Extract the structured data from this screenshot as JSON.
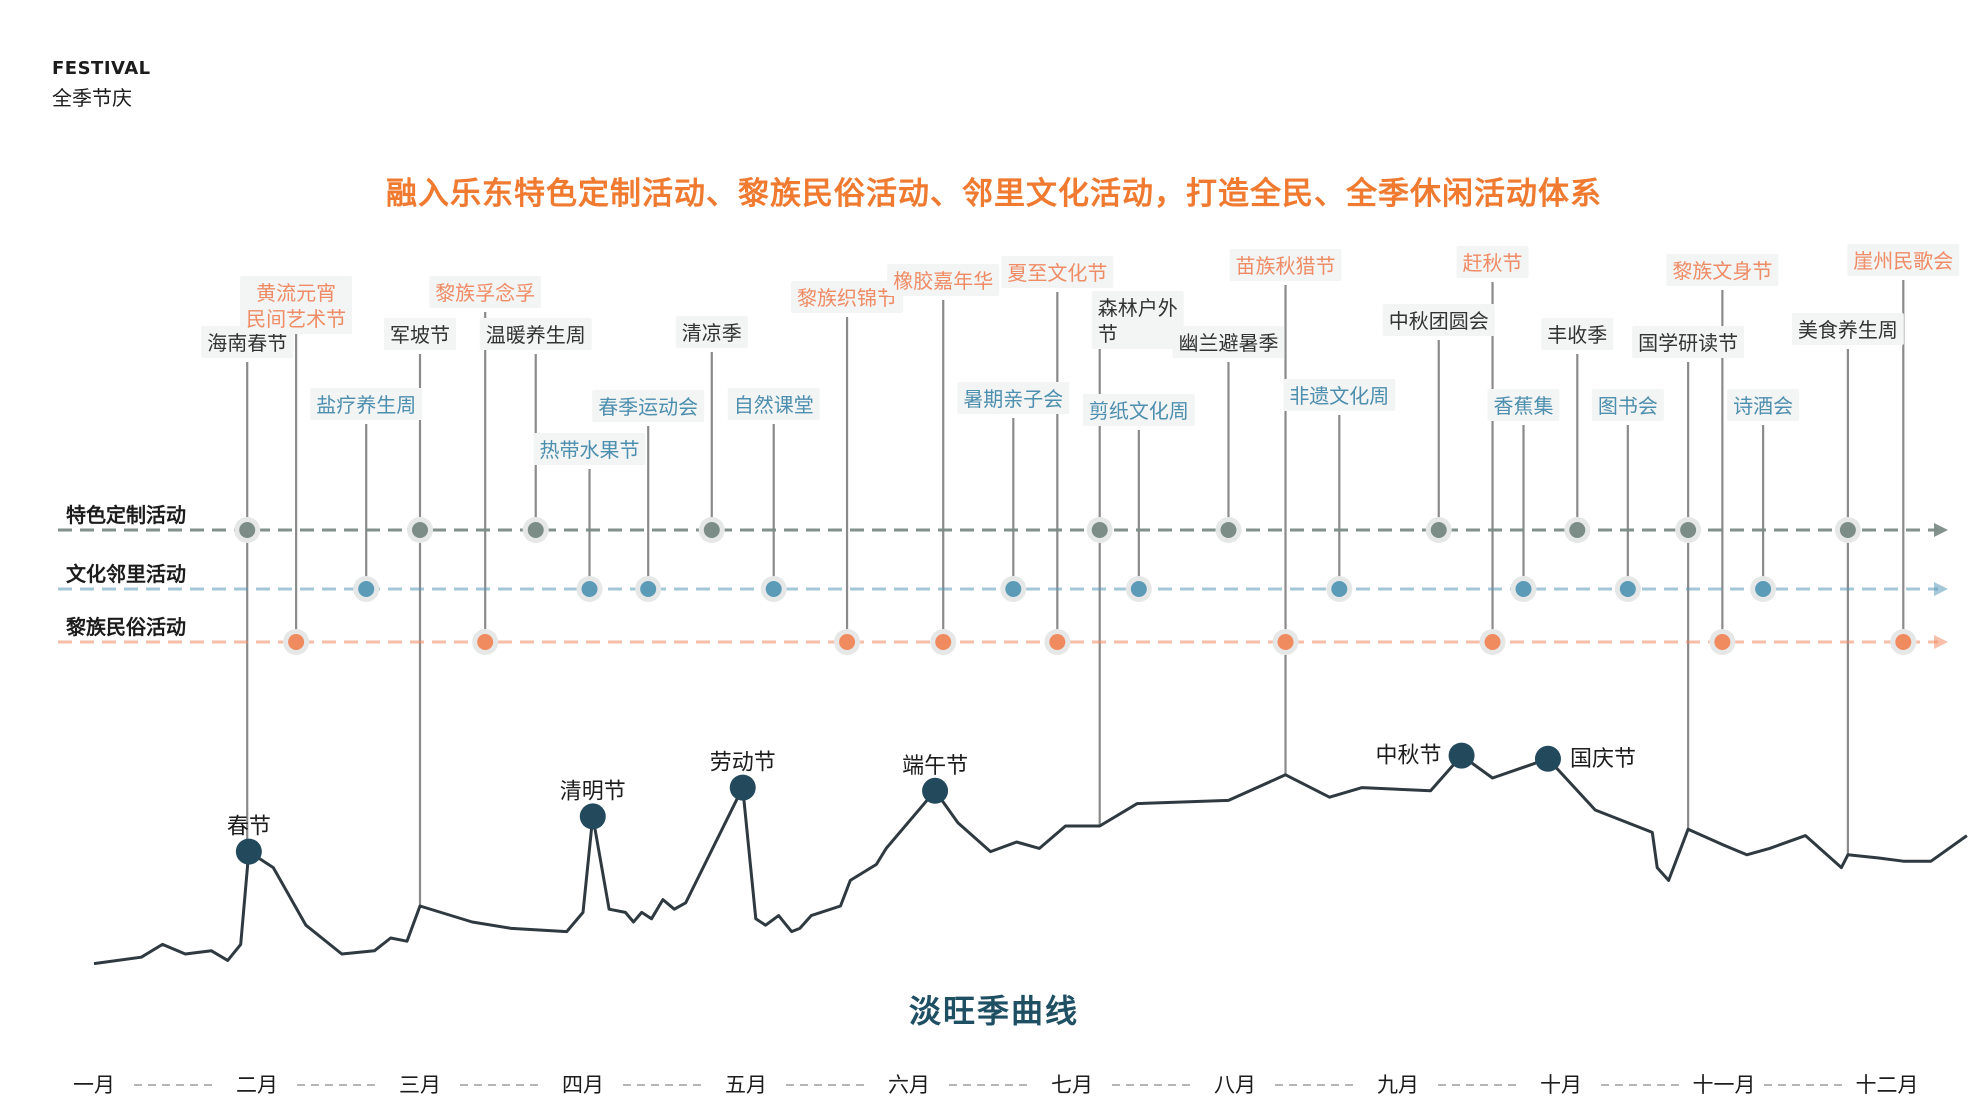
{
  "header": {
    "en": "FESTIVAL",
    "zh": "全季节庆"
  },
  "headline": "融入乐东特色定制活动、黎族民俗活动、邻里文化活动，打造全民、全季休闲活动体系",
  "curve_title": "淡旺季曲线",
  "colors": {
    "headline": "#ef7a30",
    "featured": "#7c8c87",
    "culture": "#5b9bb8",
    "folk": "#f08a5f",
    "folk_text": "#ef8c65",
    "culture_text": "#4d8fae",
    "featured_text": "#333333",
    "curve": "#2f3a40",
    "holiday_dot": "#234a5c",
    "title": "#1f4f63"
  },
  "tracks": [
    {
      "id": "featured",
      "label": "特色定制活动"
    },
    {
      "id": "culture",
      "label": "文化邻里活动"
    },
    {
      "id": "folk",
      "label": "黎族民俗活动"
    }
  ],
  "activities": [
    {
      "track": "featured",
      "label": "海南春节",
      "month": 1.94
    },
    {
      "track": "featured",
      "label": "军坡节",
      "month": 3.0
    },
    {
      "track": "featured",
      "label": "温暖养生周",
      "month": 3.71
    },
    {
      "track": "featured",
      "label": "清凉季",
      "month": 4.79
    },
    {
      "track": "featured",
      "label": "森林户外\n节",
      "month": 7.17
    },
    {
      "track": "featured",
      "label": "幽兰避暑季",
      "month": 7.96
    },
    {
      "track": "featured",
      "label": "中秋团圆会",
      "month": 9.25
    },
    {
      "track": "featured",
      "label": "丰收季",
      "month": 10.1
    },
    {
      "track": "featured",
      "label": "国学研读节",
      "month": 10.78
    },
    {
      "track": "featured",
      "label": "美食养生周",
      "month": 11.76
    },
    {
      "track": "culture",
      "label": "盐疗养生周",
      "month": 2.67
    },
    {
      "track": "culture",
      "label": "热带水果节",
      "month": 4.04
    },
    {
      "track": "culture",
      "label": "春季运动会",
      "month": 4.4
    },
    {
      "track": "culture",
      "label": "自然课堂",
      "month": 5.17
    },
    {
      "track": "culture",
      "label": "暑期亲子会",
      "month": 6.64
    },
    {
      "track": "culture",
      "label": "剪纸文化周",
      "month": 7.41
    },
    {
      "track": "culture",
      "label": "非遗文化周",
      "month": 8.64
    },
    {
      "track": "culture",
      "label": "香蕉集",
      "month": 9.77
    },
    {
      "track": "culture",
      "label": "图书会",
      "month": 10.41
    },
    {
      "track": "culture",
      "label": "诗酒会",
      "month": 11.24
    },
    {
      "track": "folk",
      "label": "黄流元宵\n民间艺术节",
      "month": 2.24
    },
    {
      "track": "folk",
      "label": "黎族孚念孚",
      "month": 3.4
    },
    {
      "track": "folk",
      "label": "黎族织锦节",
      "month": 5.62
    },
    {
      "track": "folk",
      "label": "橡胶嘉年华",
      "month": 6.21
    },
    {
      "track": "folk",
      "label": "夏至文化节",
      "month": 6.91
    },
    {
      "track": "folk",
      "label": "苗族秋猎节",
      "month": 8.31
    },
    {
      "track": "folk",
      "label": "赶秋节",
      "month": 9.58
    },
    {
      "track": "folk",
      "label": "黎族文身节",
      "month": 10.99
    },
    {
      "track": "folk",
      "label": "崖州民歌会",
      "month": 12.1
    }
  ],
  "holidays": [
    {
      "label": "春节",
      "month": 1.95
    },
    {
      "label": "清明节",
      "month": 4.06
    },
    {
      "label": "劳动节",
      "month": 4.98
    },
    {
      "label": "端午节",
      "month": 6.16
    },
    {
      "label": "中秋节",
      "month": 9.39
    },
    {
      "label": "国庆节",
      "month": 9.92
    }
  ],
  "months": [
    "一月",
    "二月",
    "三月",
    "四月",
    "五月",
    "六月",
    "七月",
    "八月",
    "九月",
    "十月",
    "十一月",
    "十二月"
  ]
}
